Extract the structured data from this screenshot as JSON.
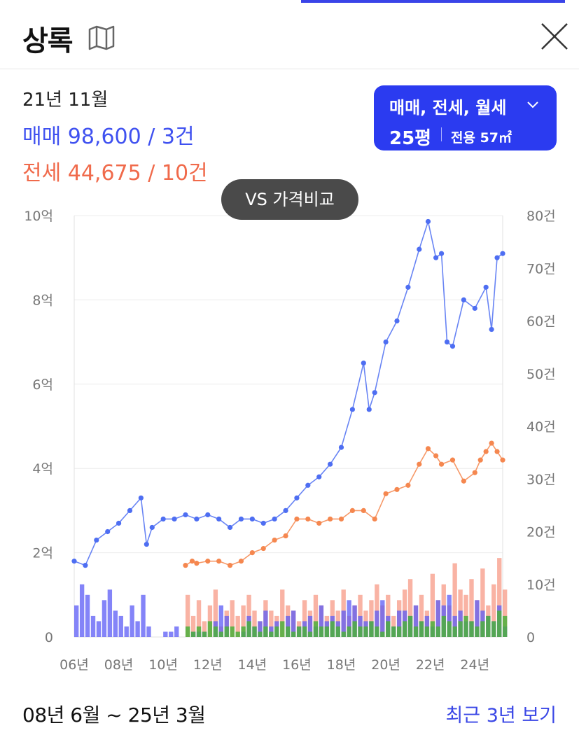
{
  "header": {
    "title": "상록",
    "map_icon": "map-icon",
    "close_icon": "close-icon"
  },
  "summary": {
    "date": "21년 11월",
    "sale_line": "매매 98,600 / 3건",
    "jeonse_line": "전세 44,675 / 10건"
  },
  "filter": {
    "types": "매매, 전세, 월세",
    "size": "25평",
    "area": "전용 57㎡",
    "chevron_icon": "chevron-down-icon"
  },
  "vs_button": "VS 가격비교",
  "footer": {
    "range": "08년 6월 ~ 25년 3월",
    "recent_link": "최근 3년 보기"
  },
  "colors": {
    "sale": "#4e6ef2",
    "jeonse": "#f5874f",
    "sale_bar": "#5b5bf5",
    "jeonse_bar": "#f7937d",
    "wolse_bar": "#4caf3c"
  },
  "chart_data": {
    "type": "line",
    "y_left": {
      "ticks": [
        "0",
        "2억",
        "4억",
        "6억",
        "8억",
        "10억"
      ],
      "min": 0,
      "max": 10
    },
    "y_right": {
      "ticks": [
        "0",
        "10건",
        "20건",
        "30건",
        "40건",
        "50건",
        "60건",
        "70건",
        "80건"
      ],
      "min": 0,
      "max": 80
    },
    "x_ticks": [
      "06년",
      "08년",
      "10년",
      "12년",
      "14년",
      "16년",
      "18년",
      "20년",
      "22년",
      "24년"
    ],
    "x_range": [
      2006,
      2025.25
    ],
    "grid": true,
    "series": [
      {
        "key": "sale",
        "x": [
          2006.0,
          2006.5,
          2007.0,
          2007.5,
          2008.0,
          2008.5,
          2009.0,
          2009.25,
          2009.5,
          2010.0,
          2010.5,
          2011.0,
          2011.5,
          2012.0,
          2012.5,
          2013.0,
          2013.5,
          2014.0,
          2014.5,
          2015.0,
          2015.5,
          2016.0,
          2016.5,
          2017.0,
          2017.5,
          2018.0,
          2018.5,
          2019.0,
          2019.25,
          2019.5,
          2020.0,
          2020.5,
          2021.0,
          2021.5,
          2021.9,
          2022.25,
          2022.5,
          2022.75,
          2023.0,
          2023.5,
          2024.0,
          2024.5,
          2024.75,
          2025.0,
          2025.25
        ],
        "values": [
          1.8,
          1.7,
          2.3,
          2.5,
          2.7,
          3.0,
          3.3,
          2.2,
          2.6,
          2.8,
          2.8,
          2.9,
          2.8,
          2.9,
          2.8,
          2.6,
          2.8,
          2.8,
          2.7,
          2.8,
          3.0,
          3.3,
          3.6,
          3.8,
          4.1,
          4.5,
          5.4,
          6.5,
          5.4,
          5.8,
          7.0,
          7.5,
          8.3,
          9.2,
          9.86,
          9.0,
          9.1,
          7.0,
          6.9,
          8.0,
          7.8,
          8.3,
          7.3,
          9.0,
          9.1
        ]
      },
      {
        "key": "jeonse",
        "x": [
          2011.0,
          2011.3,
          2011.5,
          2012.0,
          2012.5,
          2013.0,
          2013.5,
          2014.0,
          2014.5,
          2015.0,
          2015.5,
          2016.0,
          2016.5,
          2017.0,
          2017.5,
          2018.0,
          2018.5,
          2019.0,
          2019.5,
          2020.0,
          2020.5,
          2021.0,
          2021.5,
          2021.9,
          2022.25,
          2022.5,
          2023.0,
          2023.5,
          2024.0,
          2024.25,
          2024.5,
          2024.75,
          2025.0,
          2025.25
        ],
        "values": [
          1.7,
          1.8,
          1.75,
          1.8,
          1.8,
          1.7,
          1.8,
          2.0,
          2.1,
          2.3,
          2.4,
          2.8,
          2.8,
          2.7,
          2.8,
          2.8,
          3.0,
          3.0,
          2.8,
          3.4,
          3.5,
          3.6,
          4.1,
          4.47,
          4.3,
          4.1,
          4.2,
          3.7,
          3.9,
          4.2,
          4.4,
          4.6,
          4.4,
          4.2
        ]
      }
    ],
    "count_bars": {
      "x_start": 2006.0,
      "step": 0.25,
      "sale": [
        6,
        10,
        8,
        4,
        3,
        7,
        9,
        5,
        4,
        2,
        6,
        3,
        8,
        2,
        0,
        0,
        1,
        1,
        2,
        0,
        0,
        1,
        1,
        1,
        0,
        3,
        6,
        4,
        0,
        0,
        1,
        4,
        2,
        3,
        5,
        2,
        3,
        0,
        4,
        5,
        2,
        3,
        4,
        2,
        6,
        3,
        4,
        3,
        5,
        7,
        6,
        4,
        3,
        3,
        5,
        7,
        4,
        2,
        5,
        5,
        4,
        6,
        3,
        4,
        2,
        7,
        6,
        8,
        4,
        5,
        3,
        3,
        7,
        5,
        4,
        3,
        6,
        2
      ],
      "jeonse": [
        0,
        0,
        0,
        0,
        0,
        0,
        0,
        0,
        0,
        0,
        0,
        0,
        0,
        0,
        0,
        0,
        0,
        0,
        0,
        0,
        8,
        4,
        7,
        3,
        6,
        9,
        2,
        5,
        7,
        4,
        6,
        8,
        5,
        3,
        7,
        5,
        4,
        9,
        6,
        5,
        3,
        7,
        5,
        8,
        6,
        4,
        7,
        5,
        9,
        4,
        6,
        8,
        5,
        7,
        10,
        6,
        8,
        4,
        7,
        9,
        11,
        6,
        8,
        5,
        12,
        7,
        10,
        6,
        14,
        9,
        8,
        11,
        7,
        13,
        6,
        10,
        15,
        9
      ],
      "wolse": [
        0,
        0,
        0,
        0,
        0,
        0,
        0,
        0,
        0,
        0,
        0,
        0,
        0,
        0,
        0,
        0,
        0,
        0,
        0,
        0,
        2,
        1,
        2,
        1,
        3,
        2,
        1,
        2,
        2,
        1,
        2,
        3,
        2,
        1,
        2,
        1,
        2,
        3,
        2,
        1,
        2,
        2,
        1,
        3,
        2,
        2,
        3,
        2,
        1,
        2,
        3,
        2,
        2,
        3,
        2,
        1,
        3,
        2,
        2,
        3,
        4,
        2,
        3,
        2,
        3,
        2,
        4,
        3,
        2,
        3,
        4,
        3,
        2,
        3,
        4,
        3,
        5,
        4
      ]
    }
  }
}
